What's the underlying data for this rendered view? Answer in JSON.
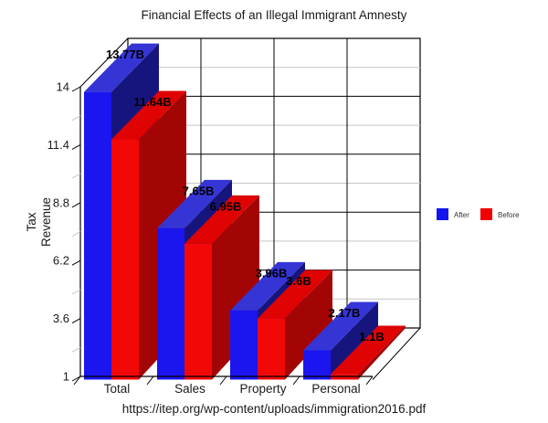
{
  "title": "Financial Effects of an Illegal Immigrant Amnesty",
  "source_url": "https://itep.org/wp-content/uploads/immigration2016.pdf",
  "chart_data": {
    "type": "bar",
    "projection": "3d",
    "title": "Financial Effects of an Illegal Immigrant Amnesty",
    "ylabel": "Tax Revenue",
    "ylabel_lines": [
      "Tax",
      "Revenue"
    ],
    "categories": [
      "Total",
      "Sales",
      "Property",
      "Personal"
    ],
    "series": [
      {
        "name": "After",
        "values": [
          13.77,
          7.65,
          3.96,
          2.17
        ],
        "value_labels": [
          "13.77B",
          "7.65B",
          "3.96B",
          "2.17B"
        ],
        "color_front": "#1B15F0",
        "color_top": "#3535D6",
        "color_side": "#16157E",
        "legend_color": "#1414F0"
      },
      {
        "name": "Before",
        "values": [
          11.64,
          6.95,
          3.6,
          1.1
        ],
        "value_labels": [
          "11.64B",
          "6.95B",
          "3.6B",
          "1.1B"
        ],
        "color_front": "#F30808",
        "color_top": "#DF0303",
        "color_side": "#A30505",
        "legend_color": "#F00000"
      }
    ],
    "ylim": [
      1,
      14
    ],
    "yticks": [
      1,
      3.6,
      6.2,
      8.8,
      11.4,
      14
    ],
    "ytick_labels": [
      "1",
      "3.6",
      "6.2",
      "8.8",
      "11.4",
      "14"
    ],
    "grid": true,
    "gridline_color": "#000000",
    "minor_gridline_color": "#C6C6C6",
    "legend_position": "right-middle"
  }
}
